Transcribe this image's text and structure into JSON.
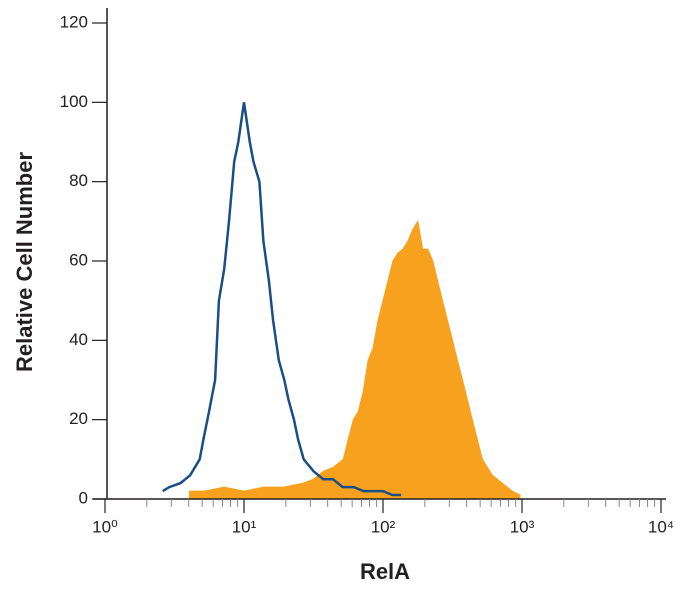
{
  "chart_data": {
    "type": "histogram",
    "xlabel": "RelA",
    "ylabel": "Relative Cell Number",
    "xscale": "log",
    "xlim": [
      1,
      10000
    ],
    "xticks": [
      {
        "value": 1,
        "label": "10⁰"
      },
      {
        "value": 10,
        "label": "10¹"
      },
      {
        "value": 100,
        "label": "10²"
      },
      {
        "value": 1000,
        "label": "10³"
      },
      {
        "value": 10000,
        "label": "10⁴"
      }
    ],
    "x_minor_ticks": [
      2,
      3,
      4,
      5,
      6,
      7,
      8,
      9,
      20,
      30,
      40,
      50,
      60,
      70,
      80,
      90,
      200,
      300,
      400,
      500,
      600,
      700,
      800,
      900,
      2000,
      3000,
      4000,
      5000,
      6000,
      7000,
      8000,
      9000
    ],
    "ylim": [
      0,
      120
    ],
    "yticks": [
      0,
      20,
      40,
      60,
      80,
      100,
      120
    ],
    "series": [
      {
        "color": "#f7a11f",
        "fill": true,
        "x": [
          4.05,
          5.18,
          7.2,
          10,
          13.9,
          19.3,
          26.8,
          31.6,
          37.3,
          43.9,
          51.8,
          56.2,
          61.1,
          66.3,
          72,
          78.1,
          84.8,
          92.1,
          100,
          108.6,
          117.9,
          128,
          139,
          151,
          164,
          178,
          193,
          210,
          228,
          247,
          268,
          291,
          316,
          343,
          373,
          405,
          439,
          477,
          518,
          611,
          720,
          849,
          968
        ],
        "values": [
          2,
          2,
          3,
          2,
          3,
          3,
          4,
          5,
          7,
          8,
          10,
          15,
          20,
          22,
          27,
          35,
          38,
          45,
          50,
          55,
          60,
          62,
          63,
          65,
          68,
          70,
          63,
          63,
          60,
          55,
          50,
          45,
          40,
          35,
          30,
          25,
          20,
          15,
          10,
          6,
          4,
          2,
          1
        ]
      },
      {
        "color": "#1a4f86",
        "fill": false,
        "x": [
          2.6,
          2.9,
          3.5,
          4.1,
          4.8,
          5.1,
          5.6,
          6.2,
          6.6,
          7.2,
          7.8,
          8.5,
          9.1,
          10,
          11,
          11.7,
          12.9,
          13.8,
          15.1,
          16.2,
          17.8,
          19.5,
          20.9,
          22.9,
          24.5,
          26.9,
          31.6,
          37.2,
          43.7,
          51.3,
          61.7,
          72.4,
          85.1,
          100,
          117,
          135
        ],
        "values": [
          2,
          3,
          4,
          6,
          10,
          15,
          22,
          30,
          50,
          58,
          70,
          85,
          90,
          100,
          90,
          85,
          80,
          65,
          55,
          45,
          35,
          30,
          25,
          20,
          15,
          10,
          7,
          5,
          5,
          3,
          3,
          2,
          2,
          2,
          1,
          1
        ]
      }
    ]
  }
}
